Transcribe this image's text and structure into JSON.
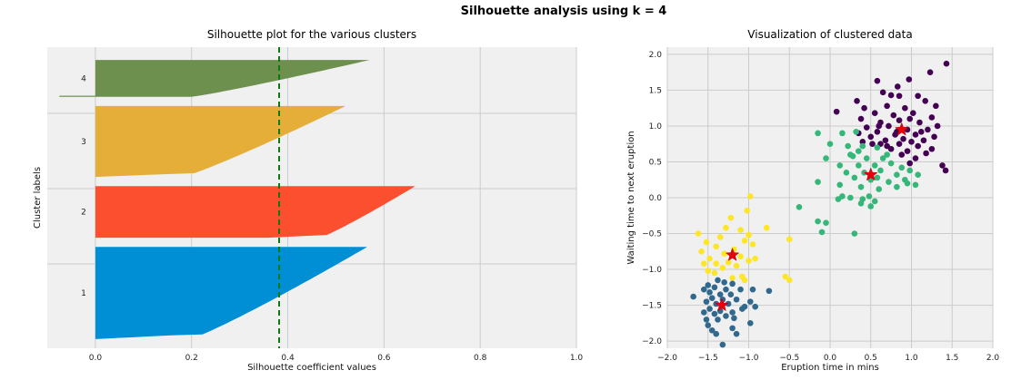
{
  "figure": {
    "suptitle": "Silhouette analysis using k = 4"
  },
  "chart_data": [
    {
      "type": "bar",
      "orientation": "horizontal",
      "title": "Silhouette plot for the various clusters",
      "xlabel": "Silhouette coefficient values",
      "ylabel": "Cluster labels",
      "xlim": [
        -0.1,
        1.0
      ],
      "xticks": [
        "0.0",
        "0.2",
        "0.4",
        "0.6",
        "0.8",
        "1.0"
      ],
      "xtick_values": [
        0.0,
        0.2,
        0.4,
        0.6,
        0.8,
        1.0
      ],
      "grid": true,
      "average_silhouette": 0.382,
      "clusters": [
        {
          "label": "1",
          "color": "#008fd5",
          "size": 100,
          "max": 0.565,
          "min": 0.0,
          "neg_min": 0.0
        },
        {
          "label": "2",
          "color": "#fc4f30",
          "size": 56,
          "max": 0.665,
          "min": 0.36,
          "neg_min": 0.0
        },
        {
          "label": "3",
          "color": "#e5ae38",
          "size": 77,
          "max": 0.52,
          "min": 0.0,
          "neg_min": 0.0
        },
        {
          "label": "4",
          "color": "#6d904f",
          "size": 40,
          "max": 0.57,
          "min": 0.0,
          "neg_min": -0.075
        }
      ]
    },
    {
      "type": "scatter",
      "title": "Visualization of clustered data",
      "xlabel": "Eruption time in mins",
      "ylabel": "Waiting time to next eruption",
      "xlim": [
        -2.0,
        2.0
      ],
      "ylim": [
        -2.1,
        2.1
      ],
      "xticks": [
        "−2.0",
        "−1.5",
        "−1.0",
        "−0.5",
        "0.0",
        "0.5",
        "1.0",
        "1.5",
        "2.0"
      ],
      "xtick_values": [
        -2.0,
        -1.5,
        -1.0,
        -0.5,
        0.0,
        0.5,
        1.0,
        1.5,
        2.0
      ],
      "yticks": [
        "−2.0",
        "−1.5",
        "−1.0",
        "−0.5",
        "0.0",
        "0.5",
        "1.0",
        "1.5",
        "2.0"
      ],
      "ytick_values": [
        -2.0,
        -1.5,
        -1.0,
        -0.5,
        0.0,
        0.5,
        1.0,
        1.5,
        2.0
      ],
      "grid": true,
      "clusters": [
        {
          "name": "cluster-purple",
          "color": "#440154",
          "centroid": [
            0.88,
            0.95
          ],
          "points": [
            [
              1.43,
              1.87
            ],
            [
              1.23,
              1.75
            ],
            [
              0.58,
              1.63
            ],
            [
              0.97,
              1.65
            ],
            [
              0.83,
              1.55
            ],
            [
              0.65,
              1.47
            ],
            [
              0.85,
              1.42
            ],
            [
              1.08,
              1.42
            ],
            [
              0.33,
              1.35
            ],
            [
              0.75,
              1.43
            ],
            [
              1.17,
              1.35
            ],
            [
              1.3,
              1.28
            ],
            [
              0.42,
              1.25
            ],
            [
              0.7,
              1.28
            ],
            [
              0.92,
              1.25
            ],
            [
              0.08,
              1.2
            ],
            [
              0.55,
              1.18
            ],
            [
              0.78,
              1.15
            ],
            [
              1.02,
              1.18
            ],
            [
              1.25,
              1.12
            ],
            [
              0.38,
              1.1
            ],
            [
              0.62,
              1.05
            ],
            [
              0.85,
              1.08
            ],
            [
              1.1,
              1.05
            ],
            [
              1.32,
              1.0
            ],
            [
              0.45,
              0.98
            ],
            [
              0.72,
              1.0
            ],
            [
              0.95,
              0.95
            ],
            [
              1.2,
              0.95
            ],
            [
              0.35,
              0.9
            ],
            [
              0.58,
              0.92
            ],
            [
              0.8,
              0.88
            ],
            [
              1.05,
              0.88
            ],
            [
              1.28,
              0.85
            ],
            [
              0.5,
              0.85
            ],
            [
              0.68,
              0.8
            ],
            [
              0.9,
              0.82
            ],
            [
              1.15,
              0.8
            ],
            [
              0.4,
              0.78
            ],
            [
              0.62,
              0.75
            ],
            [
              0.85,
              0.75
            ],
            [
              1.08,
              0.72
            ],
            [
              1.25,
              0.68
            ],
            [
              0.75,
              0.68
            ],
            [
              0.95,
              0.65
            ],
            [
              1.18,
              0.62
            ],
            [
              0.88,
              0.6
            ],
            [
              1.05,
              0.55
            ],
            [
              1.38,
              0.45
            ],
            [
              1.42,
              0.38
            ],
            [
              0.98,
              0.48
            ],
            [
              0.7,
              0.72
            ],
            [
              0.52,
              0.75
            ],
            [
              1.0,
              0.78
            ],
            [
              0.82,
              0.92
            ],
            [
              1.12,
              0.92
            ],
            [
              0.6,
              1.0
            ],
            [
              0.98,
              1.1
            ]
          ]
        },
        {
          "name": "cluster-green",
          "color": "#35b779",
          "centroid": [
            0.5,
            0.32
          ],
          "points": [
            [
              -0.15,
              0.9
            ],
            [
              0.15,
              0.9
            ],
            [
              0.32,
              0.92
            ],
            [
              0.0,
              0.75
            ],
            [
              0.22,
              0.72
            ],
            [
              0.4,
              0.72
            ],
            [
              0.58,
              0.7
            ],
            [
              -0.05,
              0.55
            ],
            [
              0.28,
              0.58
            ],
            [
              0.45,
              0.55
            ],
            [
              0.65,
              0.55
            ],
            [
              0.12,
              0.45
            ],
            [
              0.35,
              0.45
            ],
            [
              0.55,
              0.45
            ],
            [
              0.75,
              0.48
            ],
            [
              0.88,
              0.42
            ],
            [
              0.2,
              0.35
            ],
            [
              0.42,
              0.35
            ],
            [
              0.62,
              0.38
            ],
            [
              0.82,
              0.32
            ],
            [
              0.98,
              0.38
            ],
            [
              1.08,
              0.32
            ],
            [
              0.3,
              0.28
            ],
            [
              0.5,
              0.25
            ],
            [
              0.72,
              0.22
            ],
            [
              0.92,
              0.25
            ],
            [
              -0.15,
              0.22
            ],
            [
              0.12,
              0.18
            ],
            [
              0.38,
              0.15
            ],
            [
              0.6,
              0.12
            ],
            [
              0.82,
              0.15
            ],
            [
              0.95,
              0.2
            ],
            [
              1.05,
              0.18
            ],
            [
              0.15,
              0.02
            ],
            [
              0.25,
              0.0
            ],
            [
              0.4,
              -0.02
            ],
            [
              0.55,
              -0.05
            ],
            [
              0.1,
              -0.02
            ],
            [
              0.48,
              0.02
            ],
            [
              -0.38,
              -0.13
            ],
            [
              -0.15,
              -0.33
            ],
            [
              -0.05,
              -0.35
            ],
            [
              -0.1,
              -0.48
            ],
            [
              0.3,
              -0.5
            ],
            [
              0.5,
              -0.12
            ],
            [
              0.38,
              -0.08
            ],
            [
              0.7,
              0.6
            ],
            [
              0.25,
              0.6
            ],
            [
              0.35,
              0.65
            ],
            [
              0.58,
              0.28
            ]
          ]
        },
        {
          "name": "cluster-yellow",
          "color": "#fde725",
          "centroid": [
            -1.2,
            -0.8
          ],
          "points": [
            [
              -0.98,
              0.02
            ],
            [
              -1.02,
              -0.18
            ],
            [
              -1.22,
              -0.28
            ],
            [
              -1.28,
              -0.42
            ],
            [
              -0.78,
              -0.42
            ],
            [
              -1.1,
              -0.45
            ],
            [
              -1.62,
              -0.5
            ],
            [
              -1.0,
              -0.52
            ],
            [
              -1.35,
              -0.55
            ],
            [
              -0.5,
              -0.58
            ],
            [
              -1.05,
              -0.6
            ],
            [
              -1.52,
              -0.62
            ],
            [
              -0.95,
              -0.65
            ],
            [
              -1.4,
              -0.68
            ],
            [
              -1.18,
              -0.72
            ],
            [
              -1.58,
              -0.75
            ],
            [
              -1.3,
              -0.78
            ],
            [
              -1.1,
              -0.82
            ],
            [
              -0.92,
              -0.85
            ],
            [
              -1.48,
              -0.85
            ],
            [
              -1.0,
              -0.88
            ],
            [
              -1.25,
              -0.9
            ],
            [
              -1.4,
              -0.92
            ],
            [
              -1.55,
              -0.92
            ],
            [
              -1.15,
              -0.95
            ],
            [
              -1.32,
              -0.98
            ],
            [
              -1.5,
              -1.02
            ],
            [
              -1.42,
              -1.05
            ],
            [
              -1.08,
              -1.1
            ],
            [
              -0.55,
              -1.1
            ],
            [
              -0.5,
              -1.15
            ],
            [
              -1.2,
              -1.12
            ],
            [
              -1.05,
              -1.15
            ]
          ]
        },
        {
          "name": "cluster-blue",
          "color": "#31688e",
          "centroid": [
            -1.33,
            -1.5
          ],
          "points": [
            [
              -1.38,
              -1.15
            ],
            [
              -1.3,
              -1.18
            ],
            [
              -1.2,
              -1.2
            ],
            [
              -1.5,
              -1.22
            ],
            [
              -1.42,
              -1.25
            ],
            [
              -1.55,
              -1.28
            ],
            [
              -1.28,
              -1.28
            ],
            [
              -1.1,
              -1.28
            ],
            [
              -0.95,
              -1.28
            ],
            [
              -0.75,
              -1.3
            ],
            [
              -1.48,
              -1.32
            ],
            [
              -1.35,
              -1.35
            ],
            [
              -1.22,
              -1.35
            ],
            [
              -1.68,
              -1.38
            ],
            [
              -1.45,
              -1.4
            ],
            [
              -1.32,
              -1.42
            ],
            [
              -1.15,
              -1.42
            ],
            [
              -0.98,
              -1.45
            ],
            [
              -1.52,
              -1.45
            ],
            [
              -1.4,
              -1.48
            ],
            [
              -1.25,
              -1.48
            ],
            [
              -1.05,
              -1.52
            ],
            [
              -0.92,
              -1.52
            ],
            [
              -1.48,
              -1.55
            ],
            [
              -1.35,
              -1.58
            ],
            [
              -1.2,
              -1.6
            ],
            [
              -1.55,
              -1.6
            ],
            [
              -1.42,
              -1.62
            ],
            [
              -1.28,
              -1.65
            ],
            [
              -1.52,
              -1.7
            ],
            [
              -1.38,
              -1.7
            ],
            [
              -1.18,
              -1.68
            ],
            [
              -0.98,
              -1.75
            ],
            [
              -1.5,
              -1.78
            ],
            [
              -1.45,
              -1.85
            ],
            [
              -1.4,
              -1.9
            ],
            [
              -1.2,
              -1.82
            ],
            [
              -1.15,
              -1.9
            ],
            [
              -1.32,
              -2.05
            ],
            [
              -1.08,
              -1.55
            ]
          ]
        }
      ]
    }
  ]
}
